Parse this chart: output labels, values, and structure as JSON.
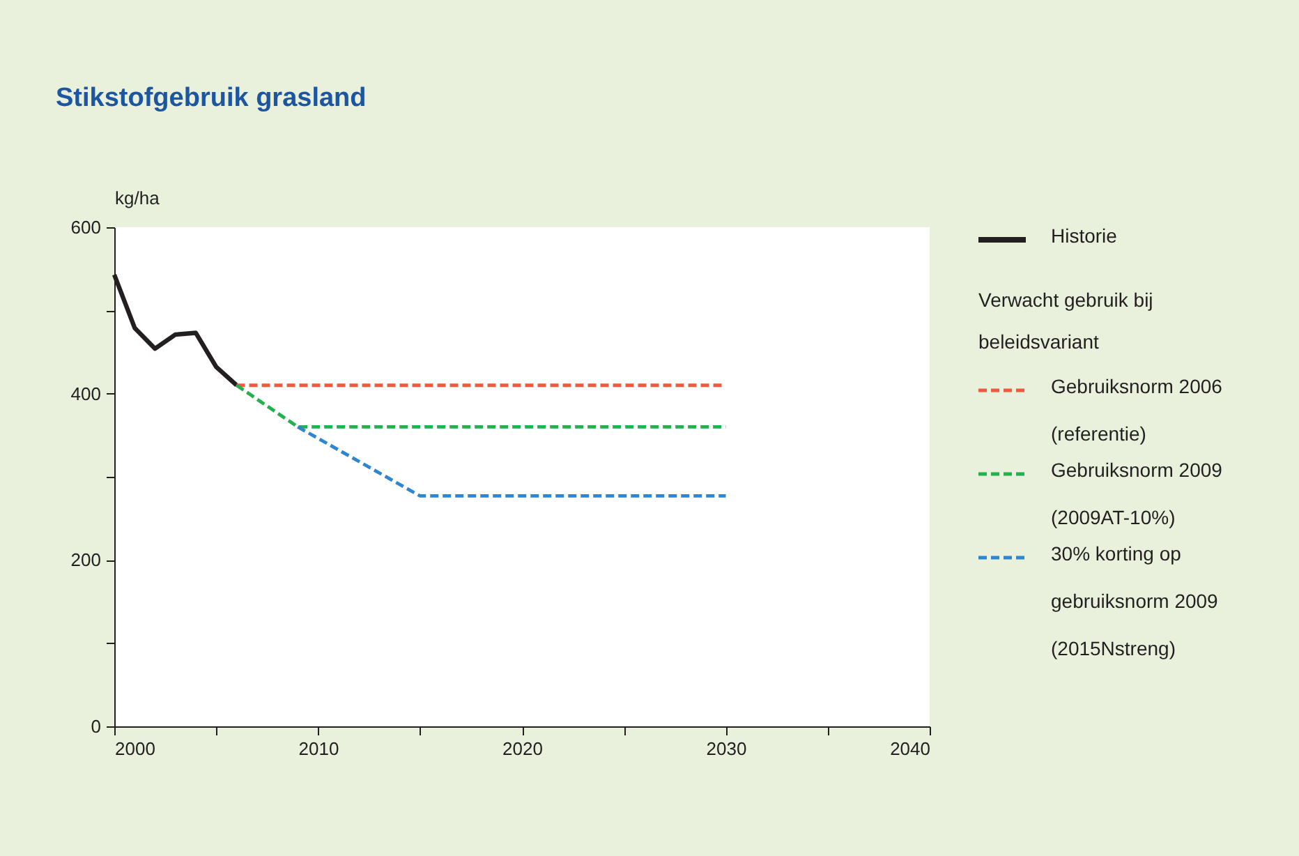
{
  "chart_data": {
    "type": "line",
    "title": "Stikstofgebruik grasland",
    "ylabel": "kg/ha",
    "legend_title": "Verwacht gebruik bij beleidsvariant",
    "legend": "right",
    "grid": false,
    "marker": "none",
    "xlim": [
      2000,
      2040
    ],
    "xticks": [
      2000,
      {
        "value": 2005,
        "label": null
      },
      2010,
      {
        "value": 2015,
        "label": null
      },
      2020,
      {
        "value": 2025,
        "label": null
      },
      2030,
      {
        "value": 2035,
        "label": null
      },
      2040
    ],
    "ylim": [
      0,
      600
    ],
    "yticks": [
      0,
      {
        "value": 100,
        "label": null
      },
      200,
      {
        "value": 300,
        "label": null
      },
      400,
      {
        "value": 500,
        "label": null
      },
      600
    ],
    "series": [
      {
        "name": "Historie",
        "color": "#231f20",
        "line_style": "solid",
        "x": [
          2000,
          2001,
          2002,
          2003,
          2004,
          2005,
          2006
        ],
        "values": [
          543,
          479,
          454,
          471,
          473,
          432,
          410
        ]
      },
      {
        "name": "Gebruiksnorm 2006 (referentie)",
        "color": "#f05a3c",
        "line_style": "dashed",
        "x": [
          2006,
          2030
        ],
        "values": [
          410,
          410
        ]
      },
      {
        "name": "Gebruiksnorm 2009 (2009AT-10%)",
        "color": "#22b14c",
        "line_style": "dashed",
        "x": [
          2006,
          2009,
          2030
        ],
        "values": [
          410,
          360,
          360
        ]
      },
      {
        "name": "30% korting op gebruiksnorm 2009 (2015Nstreng)",
        "color": "#2f86d0",
        "line_style": "dashed",
        "x": [
          2009,
          2015,
          2030
        ],
        "values": [
          360,
          277,
          277
        ]
      }
    ]
  }
}
